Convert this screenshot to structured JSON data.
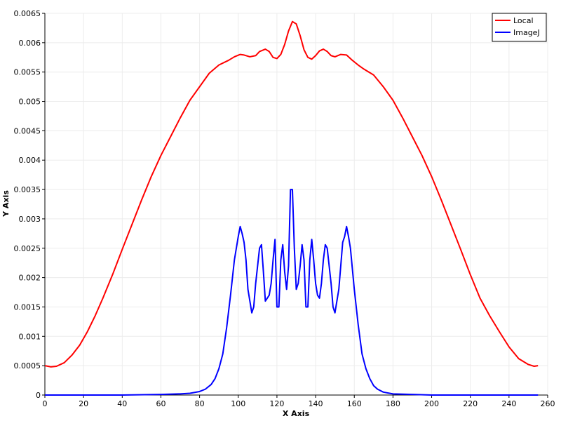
{
  "chart_data": {
    "type": "line",
    "title": "",
    "xlabel": "X Axis",
    "ylabel": "Y Axis",
    "xlim": [
      0,
      260
    ],
    "ylim": [
      0,
      0.0065
    ],
    "grid": true,
    "legend_position": "top-right",
    "x_ticks": [
      "0",
      "20",
      "40",
      "60",
      "80",
      "100",
      "120",
      "140",
      "160",
      "180",
      "200",
      "220",
      "240",
      "260"
    ],
    "y_ticks": [
      "0",
      "0.0005",
      "0.001",
      "0.0015",
      "0.002",
      "0.0025",
      "0.003",
      "0.0035",
      "0.004",
      "0.0045",
      "0.005",
      "0.0055",
      "0.006",
      "0.0065"
    ],
    "series": [
      {
        "name": "Local",
        "color": "#ff0000",
        "x": [
          0,
          3,
          6,
          10,
          14,
          18,
          22,
          26,
          30,
          35,
          40,
          45,
          50,
          55,
          60,
          65,
          70,
          75,
          80,
          85,
          90,
          95,
          98,
          101,
          103,
          106,
          109,
          111,
          114,
          116,
          118,
          120,
          122,
          124,
          126,
          128,
          130,
          132,
          134,
          136,
          138,
          140,
          142,
          144,
          146,
          148,
          150,
          153,
          156,
          159,
          162,
          165,
          170,
          175,
          180,
          185,
          190,
          195,
          200,
          205,
          210,
          215,
          220,
          225,
          230,
          235,
          240,
          245,
          250,
          253,
          255
        ],
        "y": [
          0.0005,
          0.00048,
          0.00049,
          0.00055,
          0.00068,
          0.00085,
          0.00108,
          0.00135,
          0.00165,
          0.00205,
          0.00248,
          0.0029,
          0.00332,
          0.00372,
          0.00408,
          0.0044,
          0.00472,
          0.00502,
          0.00525,
          0.00548,
          0.00562,
          0.0057,
          0.00576,
          0.0058,
          0.00579,
          0.00576,
          0.00578,
          0.00585,
          0.00589,
          0.00585,
          0.00575,
          0.00573,
          0.0058,
          0.00597,
          0.0062,
          0.00636,
          0.00632,
          0.00612,
          0.00588,
          0.00575,
          0.00572,
          0.00578,
          0.00586,
          0.00589,
          0.00585,
          0.00578,
          0.00576,
          0.0058,
          0.00579,
          0.0057,
          0.00562,
          0.00555,
          0.00545,
          0.00525,
          0.00502,
          0.00472,
          0.0044,
          0.00408,
          0.00372,
          0.00332,
          0.0029,
          0.00248,
          0.00205,
          0.00165,
          0.00135,
          0.00108,
          0.00082,
          0.00062,
          0.00052,
          0.00049,
          0.0005
        ]
      },
      {
        "name": "ImageJ",
        "color": "#0000ff",
        "x": [
          0,
          40,
          60,
          70,
          75,
          80,
          83,
          86,
          88,
          90,
          92,
          94,
          96,
          97,
          98,
          99,
          100,
          101,
          102,
          103,
          104,
          105,
          106,
          107,
          108,
          109,
          110,
          111,
          112,
          113,
          114,
          115,
          116,
          117,
          118,
          119,
          120,
          121,
          122,
          123,
          124,
          125,
          126,
          127,
          128,
          129,
          130,
          131,
          132,
          133,
          134,
          135,
          136,
          137,
          138,
          139,
          140,
          141,
          142,
          143,
          144,
          145,
          146,
          147,
          148,
          149,
          150,
          151,
          152,
          153,
          154,
          155,
          156,
          157,
          158,
          160,
          162,
          164,
          166,
          168,
          170,
          172,
          175,
          180,
          190,
          200,
          220,
          240,
          255
        ],
        "y": [
          0,
          0,
          1e-05,
          2e-05,
          3e-05,
          6e-05,
          0.0001,
          0.00018,
          0.00028,
          0.00045,
          0.0007,
          0.00115,
          0.0017,
          0.002,
          0.0023,
          0.0025,
          0.0027,
          0.00287,
          0.00275,
          0.0026,
          0.0023,
          0.0018,
          0.0016,
          0.0014,
          0.0015,
          0.0019,
          0.0022,
          0.0025,
          0.00256,
          0.0021,
          0.0016,
          0.00165,
          0.0017,
          0.0019,
          0.0023,
          0.00265,
          0.0015,
          0.0015,
          0.0023,
          0.00256,
          0.0021,
          0.0018,
          0.0022,
          0.0035,
          0.0035,
          0.0025,
          0.0018,
          0.0019,
          0.0022,
          0.00256,
          0.0023,
          0.0015,
          0.0015,
          0.0023,
          0.00265,
          0.0023,
          0.0019,
          0.0017,
          0.00165,
          0.0019,
          0.0023,
          0.00256,
          0.0025,
          0.0022,
          0.0019,
          0.0015,
          0.0014,
          0.0016,
          0.0018,
          0.0022,
          0.0026,
          0.0027,
          0.00287,
          0.0027,
          0.0025,
          0.0018,
          0.0012,
          0.0007,
          0.00045,
          0.00028,
          0.00016,
          0.0001,
          5e-05,
          2e-05,
          1e-05,
          0,
          0,
          0,
          0
        ]
      }
    ]
  }
}
